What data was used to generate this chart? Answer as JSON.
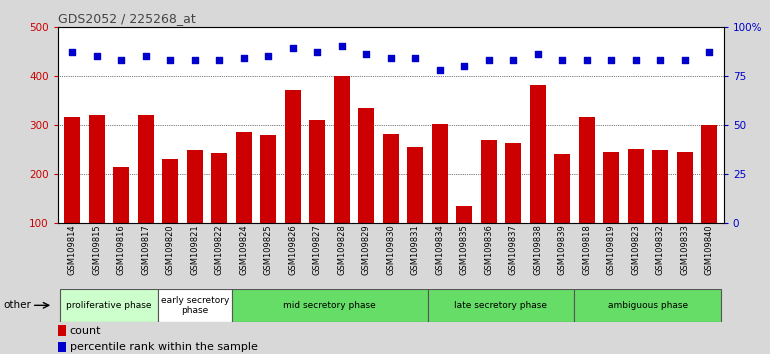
{
  "title": "GDS2052 / 225268_at",
  "samples": [
    "GSM109814",
    "GSM109815",
    "GSM109816",
    "GSM109817",
    "GSM109820",
    "GSM109821",
    "GSM109822",
    "GSM109824",
    "GSM109825",
    "GSM109826",
    "GSM109827",
    "GSM109828",
    "GSM109829",
    "GSM109830",
    "GSM109831",
    "GSM109834",
    "GSM109835",
    "GSM109836",
    "GSM109837",
    "GSM109838",
    "GSM109839",
    "GSM109818",
    "GSM109819",
    "GSM109823",
    "GSM109832",
    "GSM109833",
    "GSM109840"
  ],
  "counts": [
    315,
    320,
    215,
    320,
    230,
    248,
    242,
    285,
    280,
    370,
    310,
    400,
    335,
    282,
    255,
    302,
    135,
    270,
    262,
    380,
    240,
    315,
    245,
    250,
    248,
    245,
    300
  ],
  "percentile_ranks": [
    87,
    85,
    83,
    85,
    83,
    83,
    83,
    84,
    85,
    89,
    87,
    90,
    86,
    84,
    84,
    78,
    80,
    83,
    83,
    86,
    83,
    83,
    83,
    83,
    83,
    83,
    87
  ],
  "bar_color": "#cc0000",
  "dot_color": "#0000cc",
  "ylim_left": [
    100,
    500
  ],
  "ylim_right": [
    0,
    100
  ],
  "yticks_left": [
    100,
    200,
    300,
    400,
    500
  ],
  "yticks_right": [
    0,
    25,
    50,
    75,
    100
  ],
  "ytick_labels_right": [
    "0",
    "25",
    "50",
    "75",
    "100%"
  ],
  "grid_values": [
    200,
    300,
    400
  ],
  "phases": [
    {
      "label": "proliferative phase",
      "start": 0,
      "end": 4,
      "color": "#ccffcc"
    },
    {
      "label": "early secretory\nphase",
      "start": 4,
      "end": 7,
      "color": "#ffffff"
    },
    {
      "label": "mid secretory phase",
      "start": 7,
      "end": 15,
      "color": "#66dd66"
    },
    {
      "label": "late secretory phase",
      "start": 15,
      "end": 21,
      "color": "#66dd66"
    },
    {
      "label": "ambiguous phase",
      "start": 21,
      "end": 27,
      "color": "#66dd66"
    }
  ],
  "other_label": "other",
  "legend_count": "count",
  "legend_percentile": "percentile rank within the sample",
  "background_color": "#d8d8d8",
  "plot_bg_color": "#ffffff",
  "left_tick_color": "#cc0000",
  "right_tick_color": "#0000cc"
}
